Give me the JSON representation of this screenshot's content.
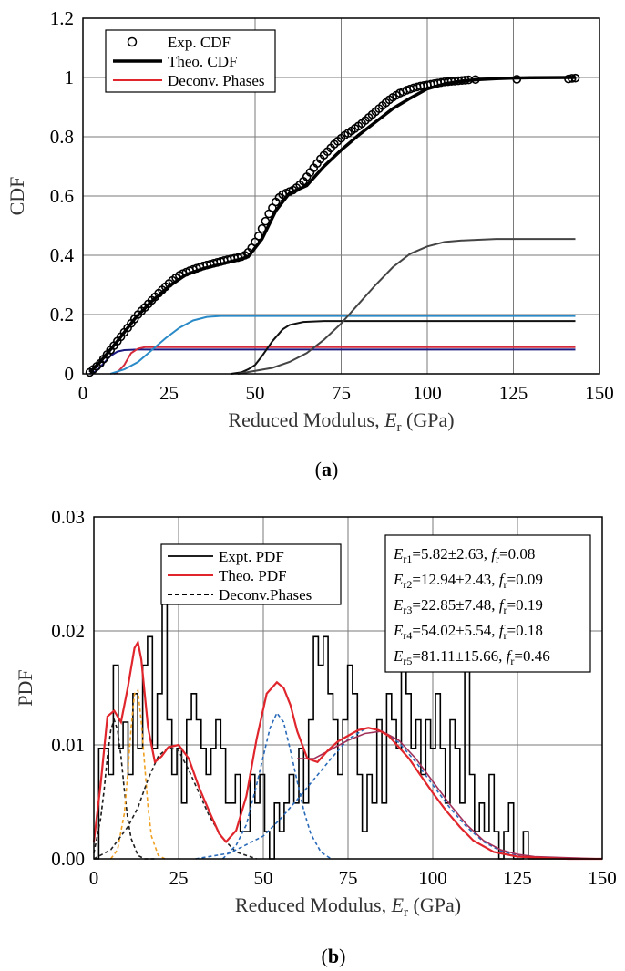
{
  "chart_data": [
    {
      "type": "line",
      "panel_label_pre": "(",
      "panel_label": "a",
      "panel_label_post": ")",
      "xlabel_pre": "Reduced Modulus, ",
      "xlabel_sym": "E",
      "xlabel_sub": "r",
      "xlabel_post": " (GPa)",
      "ylabel": "CDF",
      "xlim": [
        0,
        150
      ],
      "ylim": [
        0,
        1.2
      ],
      "x_ticks": [
        "0",
        "25",
        "50",
        "75",
        "100",
        "125",
        "150"
      ],
      "y_ticks": [
        "0",
        "0.2",
        "0.4",
        "0.6",
        "0.8",
        "1",
        "1.2"
      ],
      "grid": true,
      "legend_position": "top-left",
      "legend": [
        "Exp. CDF",
        "Theo. CDF",
        "Deconv. Phases"
      ],
      "colors": {
        "exp": "#000000",
        "theo": "#000000",
        "deconv_legend": "#e0262c",
        "phase1": "#1a1a80",
        "phase2": "#d42a3a",
        "phase3": "#2a8ac8",
        "phase4": "#111111",
        "phase5": "#444444"
      },
      "series": [
        {
          "name": "Exp. CDF",
          "style": "markers",
          "x": [
            2,
            3,
            4,
            5,
            6,
            7,
            8,
            9,
            10,
            11,
            12,
            13,
            14,
            15,
            16,
            17,
            18,
            19,
            20,
            21,
            22,
            23,
            24,
            25,
            26,
            27,
            28,
            29,
            30,
            31,
            32,
            33,
            34,
            35,
            36,
            37,
            38,
            39,
            40,
            41,
            42,
            43,
            44,
            45,
            46,
            47,
            48,
            49,
            50,
            51,
            52,
            53,
            54,
            55,
            56,
            57,
            58,
            59,
            60,
            61,
            62,
            63,
            64,
            65,
            66,
            67,
            68,
            69,
            70,
            71,
            72,
            73,
            74,
            75,
            76,
            77,
            78,
            79,
            80,
            81,
            82,
            83,
            84,
            85,
            86,
            87,
            88,
            89,
            90,
            91,
            92,
            93,
            94,
            95,
            96,
            97,
            98,
            99,
            100,
            101,
            102,
            103,
            104,
            105,
            106,
            107,
            108,
            109,
            110,
            111,
            112,
            114,
            126,
            141,
            142,
            143
          ],
          "y": [
            0.005,
            0.015,
            0.025,
            0.035,
            0.05,
            0.065,
            0.08,
            0.095,
            0.11,
            0.125,
            0.14,
            0.155,
            0.17,
            0.185,
            0.2,
            0.212,
            0.224,
            0.236,
            0.248,
            0.26,
            0.272,
            0.283,
            0.294,
            0.305,
            0.315,
            0.324,
            0.332,
            0.338,
            0.343,
            0.348,
            0.352,
            0.356,
            0.36,
            0.364,
            0.367,
            0.37,
            0.373,
            0.376,
            0.379,
            0.382,
            0.385,
            0.388,
            0.39,
            0.392,
            0.395,
            0.4,
            0.41,
            0.425,
            0.445,
            0.465,
            0.49,
            0.515,
            0.54,
            0.56,
            0.58,
            0.595,
            0.605,
            0.61,
            0.615,
            0.62,
            0.628,
            0.638,
            0.65,
            0.665,
            0.68,
            0.695,
            0.71,
            0.725,
            0.738,
            0.75,
            0.762,
            0.775,
            0.785,
            0.795,
            0.805,
            0.812,
            0.82,
            0.828,
            0.836,
            0.845,
            0.855,
            0.865,
            0.875,
            0.885,
            0.895,
            0.905,
            0.915,
            0.925,
            0.933,
            0.94,
            0.947,
            0.952,
            0.957,
            0.961,
            0.965,
            0.968,
            0.971,
            0.973,
            0.975,
            0.977,
            0.979,
            0.981,
            0.983,
            0.985,
            0.986,
            0.987,
            0.988,
            0.989,
            0.99,
            0.991,
            0.992,
            0.993,
            0.994,
            0.995,
            0.997,
            0.998
          ]
        },
        {
          "name": "Theo. CDF",
          "style": "line",
          "x": [
            2,
            5,
            10,
            15,
            20,
            25,
            30,
            35,
            40,
            45,
            48,
            52,
            56,
            60,
            65,
            70,
            75,
            80,
            85,
            90,
            95,
            100,
            105,
            110,
            115,
            120,
            125,
            130,
            143
          ],
          "y": [
            0.005,
            0.04,
            0.11,
            0.185,
            0.245,
            0.295,
            0.335,
            0.355,
            0.37,
            0.385,
            0.395,
            0.455,
            0.55,
            0.61,
            0.635,
            0.7,
            0.755,
            0.805,
            0.85,
            0.895,
            0.93,
            0.962,
            0.978,
            0.988,
            0.993,
            0.996,
            0.998,
            0.999,
            1.0
          ]
        },
        {
          "name": "",
          "group": "phase1",
          "x": [
            2,
            4,
            6,
            8,
            10,
            12,
            16,
            20,
            30,
            143
          ],
          "y": [
            0,
            0.01,
            0.035,
            0.06,
            0.075,
            0.08,
            0.082,
            0.082,
            0.082,
            0.082
          ]
        },
        {
          "name": "",
          "group": "phase2",
          "x": [
            9,
            10,
            12,
            13,
            14,
            16,
            18,
            20,
            30,
            143
          ],
          "y": [
            0,
            0.005,
            0.03,
            0.05,
            0.07,
            0.085,
            0.09,
            0.09,
            0.09,
            0.09
          ]
        },
        {
          "name": "",
          "group": "phase3",
          "x": [
            8,
            12,
            16,
            20,
            24,
            28,
            32,
            36,
            40,
            50,
            143
          ],
          "y": [
            0,
            0.015,
            0.04,
            0.08,
            0.12,
            0.155,
            0.18,
            0.192,
            0.195,
            0.195,
            0.195
          ]
        },
        {
          "name": "",
          "group": "phase4",
          "x": [
            43,
            46,
            48,
            50,
            52,
            55,
            58,
            60,
            64,
            70,
            143
          ],
          "y": [
            0,
            0.005,
            0.015,
            0.03,
            0.06,
            0.11,
            0.15,
            0.165,
            0.175,
            0.178,
            0.178
          ]
        },
        {
          "name": "",
          "group": "phase5",
          "x": [
            45,
            55,
            60,
            65,
            70,
            75,
            80,
            85,
            90,
            95,
            100,
            105,
            110,
            120,
            130,
            143
          ],
          "y": [
            0,
            0.02,
            0.04,
            0.07,
            0.115,
            0.17,
            0.235,
            0.3,
            0.36,
            0.405,
            0.43,
            0.445,
            0.45,
            0.455,
            0.455,
            0.455
          ]
        }
      ]
    },
    {
      "type": "line",
      "panel_label_pre": "(",
      "panel_label": "b",
      "panel_label_post": ")",
      "xlabel_pre": "Reduced Modulus, ",
      "xlabel_sym": "E",
      "xlabel_sub": "r",
      "xlabel_post": " (GPa)",
      "ylabel": "PDF",
      "xlim": [
        0,
        150
      ],
      "ylim": [
        0,
        0.03
      ],
      "x_ticks": [
        "0",
        "25",
        "50",
        "75",
        "100",
        "125",
        "150"
      ],
      "y_ticks": [
        "0.00",
        "0.01",
        "0.02",
        "0.03"
      ],
      "grid": true,
      "legend_position": "top-left",
      "legend": [
        "Expt. PDF",
        "Theo. PDF",
        "Deconv.Phases"
      ],
      "colors": {
        "expt": "#000000",
        "theo": "#e0262c",
        "deconv_legend": "#000000",
        "phase1": "#1a1a1a",
        "phase2": "#f0a020",
        "phase3": "#222222",
        "phase4": "#2a6ab8",
        "phase5": "#2a6ab8",
        "tail": "#a0305a"
      },
      "annotations": [
        {
          "sym": "E",
          "sub": "r1",
          "val": "=5.82±2.63, ",
          "fsym": "f",
          "fsub": "r",
          "fval": "=0.08"
        },
        {
          "sym": "E",
          "sub": "r2",
          "val": "=12.94±2.43, ",
          "fsym": "f",
          "fsub": "r",
          "fval": "=0.09"
        },
        {
          "sym": "E",
          "sub": "r3",
          "val": "=22.85±7.48, ",
          "fsym": "f",
          "fsub": "r",
          "fval": "=0.19"
        },
        {
          "sym": "E",
          "sub": "r4",
          "val": "=54.02±5.54, ",
          "fsym": "f",
          "fsub": "r",
          "fval": "=0.18"
        },
        {
          "sym": "E",
          "sub": "r5",
          "val": "=81.11±15.66, ",
          "fsym": "f",
          "fsub": "r",
          "fval": "=0.46"
        }
      ],
      "histogram": {
        "name": "Expt. PDF",
        "bin_width": 1.44,
        "start": 0,
        "values": [
          0,
          0.0097,
          0.0097,
          0.0074,
          0.017,
          0.0097,
          0.012,
          0.0074,
          0.0145,
          0.0097,
          0.017,
          0.0195,
          0.0097,
          0.0145,
          0.0268,
          0.0122,
          0.0074,
          0.0097,
          0.0049,
          0.0122,
          0.0145,
          0.0122,
          0.0097,
          0.0074,
          0.0097,
          0.0122,
          0.0097,
          0.0049,
          0.0049,
          0.0074,
          0.0024,
          0.0024,
          0.0074,
          0.0049,
          0.0074,
          0.0024,
          0,
          0.0049,
          0.0024,
          0.0049,
          0.0074,
          0.0049,
          0.0097,
          0.0049,
          0.0122,
          0.0195,
          0.017,
          0.0195,
          0.0145,
          0.0122,
          0.0074,
          0.0122,
          0.017,
          0.0145,
          0.0074,
          0.0024,
          0.0074,
          0.0049,
          0.0122,
          0.0049,
          0.0145,
          0.0122,
          0.0097,
          0.017,
          0.0145,
          0.0097,
          0.0122,
          0.0074,
          0.0122,
          0.0097,
          0.0145,
          0.0097,
          0.0049,
          0.0122,
          0.0097,
          0.0049,
          0.017,
          0.0074,
          0.0024,
          0.0049,
          0.0024,
          0.0074,
          0.0024,
          0,
          0.0024,
          0.0049,
          0,
          0,
          0.0024,
          0,
          0,
          0,
          0,
          0,
          0,
          0,
          0
        ]
      },
      "series": [
        {
          "name": "Theo. PDF",
          "x": [
            0,
            2,
            4,
            6,
            8,
            10,
            12,
            13,
            14,
            16,
            18,
            20,
            22,
            25,
            28,
            31,
            34,
            37,
            39,
            42,
            45,
            48,
            51,
            54,
            56,
            58,
            60,
            63,
            66,
            69,
            72,
            75,
            78,
            81,
            84,
            87,
            90,
            93,
            96,
            100,
            104,
            108,
            112,
            118,
            125,
            132,
            140,
            150
          ],
          "y": [
            0.0015,
            0.0065,
            0.0125,
            0.013,
            0.012,
            0.015,
            0.0185,
            0.019,
            0.0175,
            0.0115,
            0.0085,
            0.009,
            0.0098,
            0.01,
            0.0088,
            0.0063,
            0.0042,
            0.0022,
            0.0015,
            0.0025,
            0.0055,
            0.0105,
            0.0145,
            0.0155,
            0.015,
            0.0135,
            0.0112,
            0.0088,
            0.0085,
            0.0095,
            0.0103,
            0.0108,
            0.0113,
            0.0115,
            0.0113,
            0.0108,
            0.0098,
            0.0088,
            0.0075,
            0.0058,
            0.0042,
            0.0028,
            0.0016,
            0.0006,
            0.0002,
            0.0001,
            0,
            0
          ]
        },
        {
          "name": "",
          "group": "phase1",
          "dashed": true,
          "x": [
            0,
            2,
            3,
            4,
            5,
            6,
            7,
            8,
            9,
            10,
            11,
            13,
            15,
            18
          ],
          "y": [
            0.0005,
            0.0035,
            0.006,
            0.009,
            0.0113,
            0.0122,
            0.0113,
            0.009,
            0.006,
            0.0035,
            0.0018,
            0.0003,
            0,
            0
          ]
        },
        {
          "name": "",
          "group": "phase2",
          "dashed": true,
          "x": [
            5,
            7,
            9,
            10,
            11,
            12,
            13,
            14,
            15,
            16,
            17,
            19,
            21
          ],
          "y": [
            0,
            0.0008,
            0.004,
            0.0075,
            0.0115,
            0.0145,
            0.0148,
            0.012,
            0.0082,
            0.0045,
            0.002,
            0.0003,
            0
          ]
        },
        {
          "name": "",
          "group": "phase3",
          "dashed": true,
          "x": [
            0,
            5,
            10,
            13,
            16,
            19,
            22,
            25,
            28,
            31,
            34,
            38,
            42,
            48
          ],
          "y": [
            0,
            0.0008,
            0.0028,
            0.0045,
            0.007,
            0.009,
            0.0098,
            0.0095,
            0.0078,
            0.0058,
            0.0038,
            0.0018,
            0.0006,
            0
          ]
        },
        {
          "name": "",
          "group": "phase4",
          "dashed": true,
          "x": [
            38,
            42,
            45,
            48,
            50,
            52,
            54,
            56,
            58,
            60,
            62,
            64,
            67,
            70
          ],
          "y": [
            0,
            0.0012,
            0.003,
            0.0065,
            0.009,
            0.0115,
            0.0128,
            0.012,
            0.0095,
            0.0068,
            0.0042,
            0.0022,
            0.0006,
            0
          ]
        },
        {
          "name": "",
          "group": "phase5",
          "dashed": true,
          "x": [
            30,
            40,
            50,
            55,
            60,
            65,
            70,
            75,
            80,
            81,
            85,
            90,
            95,
            100,
            105,
            110,
            115,
            120,
            125,
            130
          ],
          "y": [
            0,
            0.0005,
            0.002,
            0.0035,
            0.0052,
            0.007,
            0.0088,
            0.0105,
            0.0114,
            0.0115,
            0.0112,
            0.0102,
            0.0085,
            0.0065,
            0.0045,
            0.0028,
            0.0015,
            0.0007,
            0.0003,
            0
          ]
        },
        {
          "name": "",
          "group": "tail",
          "x": [
            60,
            65,
            70,
            75,
            80,
            85,
            90,
            95,
            100,
            105,
            110,
            115,
            120,
            125,
            130,
            140,
            150
          ],
          "y": [
            0.0088,
            0.0088,
            0.0096,
            0.0104,
            0.011,
            0.0112,
            0.0104,
            0.0088,
            0.0068,
            0.0048,
            0.003,
            0.0016,
            0.0008,
            0.0004,
            0.0002,
            0.0001,
            0
          ]
        }
      ]
    }
  ]
}
